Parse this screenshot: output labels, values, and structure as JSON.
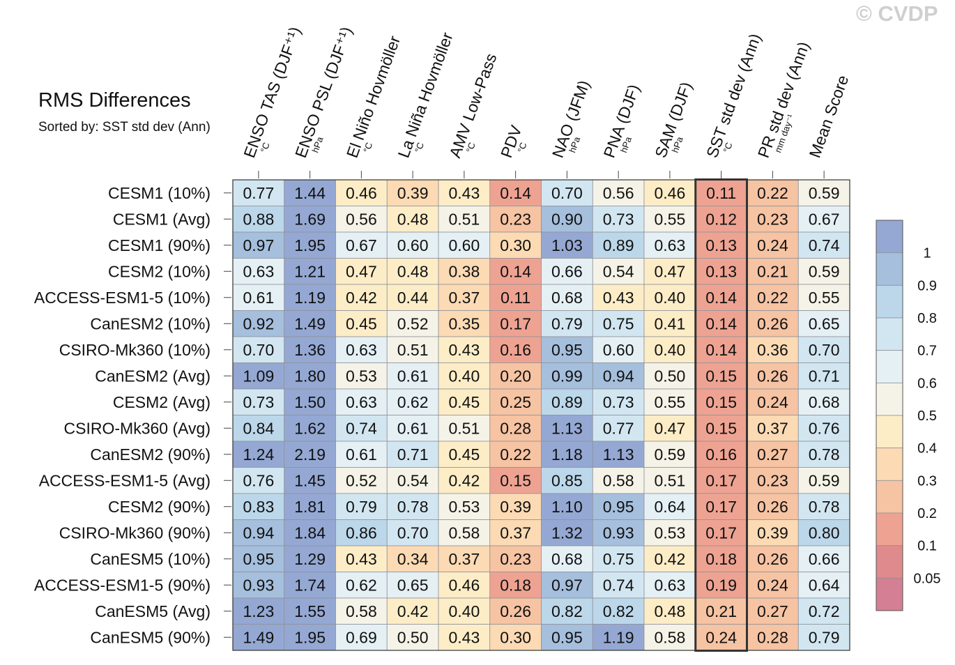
{
  "watermark": "© CVDP",
  "chart_data": {
    "type": "heatmap",
    "title": "RMS Differences",
    "subtitle": "Sorted by: SST std dev (Ann)",
    "columns": [
      {
        "label": "ENSO TAS (DJF⁺¹)",
        "unit": "°C"
      },
      {
        "label": "ENSO PSL (DJF⁺¹)",
        "unit": "hPa"
      },
      {
        "label": "El Niño Hovmöller",
        "unit": "°C"
      },
      {
        "label": "La Niña Hovmöller",
        "unit": "°C"
      },
      {
        "label": "AMV Low-Pass",
        "unit": "°C"
      },
      {
        "label": "PDV",
        "unit": "°C"
      },
      {
        "label": "NAO (JFM)",
        "unit": "hPa"
      },
      {
        "label": "PNA (DJF)",
        "unit": "hPa"
      },
      {
        "label": "SAM (DJF)",
        "unit": "hPa"
      },
      {
        "label": "SST std dev (Ann)",
        "unit": "°C"
      },
      {
        "label": "PR std dev (Ann)",
        "unit": "mm day⁻¹"
      },
      {
        "label": "Mean Score",
        "unit": ""
      }
    ],
    "rows": [
      "CESM1 (10%)",
      "CESM1 (Avg)",
      "CESM1 (90%)",
      "CESM2 (10%)",
      "ACCESS-ESM1-5 (10%)",
      "CanESM2 (10%)",
      "CSIRO-Mk360 (10%)",
      "CanESM2 (Avg)",
      "CESM2 (Avg)",
      "CSIRO-Mk360 (Avg)",
      "CanESM2 (90%)",
      "ACCESS-ESM1-5 (Avg)",
      "CESM2 (90%)",
      "CSIRO-Mk360 (90%)",
      "CanESM5 (10%)",
      "ACCESS-ESM1-5 (90%)",
      "CanESM5 (Avg)",
      "CanESM5 (90%)"
    ],
    "values": [
      [
        0.77,
        1.44,
        0.46,
        0.39,
        0.43,
        0.14,
        0.7,
        0.56,
        0.46,
        0.11,
        0.22,
        0.59
      ],
      [
        0.88,
        1.69,
        0.56,
        0.48,
        0.51,
        0.23,
        0.9,
        0.73,
        0.55,
        0.12,
        0.23,
        0.67
      ],
      [
        0.97,
        1.95,
        0.67,
        0.6,
        0.6,
        0.3,
        1.03,
        0.89,
        0.63,
        0.13,
        0.24,
        0.74
      ],
      [
        0.63,
        1.21,
        0.47,
        0.48,
        0.38,
        0.14,
        0.66,
        0.54,
        0.47,
        0.13,
        0.21,
        0.59
      ],
      [
        0.61,
        1.19,
        0.42,
        0.44,
        0.37,
        0.11,
        0.68,
        0.43,
        0.4,
        0.14,
        0.22,
        0.55
      ],
      [
        0.92,
        1.49,
        0.45,
        0.52,
        0.35,
        0.17,
        0.79,
        0.75,
        0.41,
        0.14,
        0.26,
        0.65
      ],
      [
        0.7,
        1.36,
        0.63,
        0.51,
        0.43,
        0.16,
        0.95,
        0.6,
        0.4,
        0.14,
        0.36,
        0.7
      ],
      [
        1.09,
        1.8,
        0.53,
        0.61,
        0.4,
        0.2,
        0.99,
        0.94,
        0.5,
        0.15,
        0.26,
        0.71
      ],
      [
        0.73,
        1.5,
        0.63,
        0.62,
        0.45,
        0.25,
        0.89,
        0.73,
        0.55,
        0.15,
        0.24,
        0.68
      ],
      [
        0.84,
        1.62,
        0.74,
        0.61,
        0.51,
        0.28,
        1.13,
        0.77,
        0.47,
        0.15,
        0.37,
        0.76
      ],
      [
        1.24,
        2.19,
        0.61,
        0.71,
        0.45,
        0.22,
        1.18,
        1.13,
        0.59,
        0.16,
        0.27,
        0.78
      ],
      [
        0.76,
        1.45,
        0.52,
        0.54,
        0.42,
        0.15,
        0.85,
        0.58,
        0.51,
        0.17,
        0.23,
        0.59
      ],
      [
        0.83,
        1.81,
        0.79,
        0.78,
        0.53,
        0.39,
        1.1,
        0.95,
        0.64,
        0.17,
        0.26,
        0.78
      ],
      [
        0.94,
        1.84,
        0.86,
        0.7,
        0.58,
        0.37,
        1.32,
        0.93,
        0.53,
        0.17,
        0.39,
        0.8
      ],
      [
        0.95,
        1.29,
        0.43,
        0.34,
        0.37,
        0.23,
        0.68,
        0.75,
        0.42,
        0.18,
        0.26,
        0.66
      ],
      [
        0.93,
        1.74,
        0.62,
        0.65,
        0.46,
        0.18,
        0.97,
        0.74,
        0.63,
        0.19,
        0.24,
        0.64
      ],
      [
        1.23,
        1.55,
        0.58,
        0.42,
        0.4,
        0.26,
        0.82,
        0.82,
        0.48,
        0.21,
        0.27,
        0.72
      ],
      [
        1.49,
        1.95,
        0.69,
        0.5,
        0.43,
        0.3,
        0.95,
        1.19,
        0.58,
        0.24,
        0.28,
        0.79
      ]
    ],
    "highlighted_column": "SST std dev (Ann)",
    "colorbar": {
      "levels": [
        0.05,
        0.1,
        0.2,
        0.3,
        0.4,
        0.5,
        0.6,
        0.7,
        0.8,
        0.9,
        1
      ],
      "tick_labels": [
        "1",
        "0.9",
        "0.8",
        "0.7",
        "0.6",
        "0.5",
        "0.4",
        "0.3",
        "0.2",
        "0.1",
        "0.05"
      ],
      "colors": [
        "#d47f93",
        "#df8a8c",
        "#eea392",
        "#f6c3a3",
        "#fbdab4",
        "#fdedc7",
        "#f5f3e7",
        "#e5f0f5",
        "#d2e6f1",
        "#bcd7ea",
        "#a5bfdd",
        "#94a8d3"
      ]
    }
  }
}
